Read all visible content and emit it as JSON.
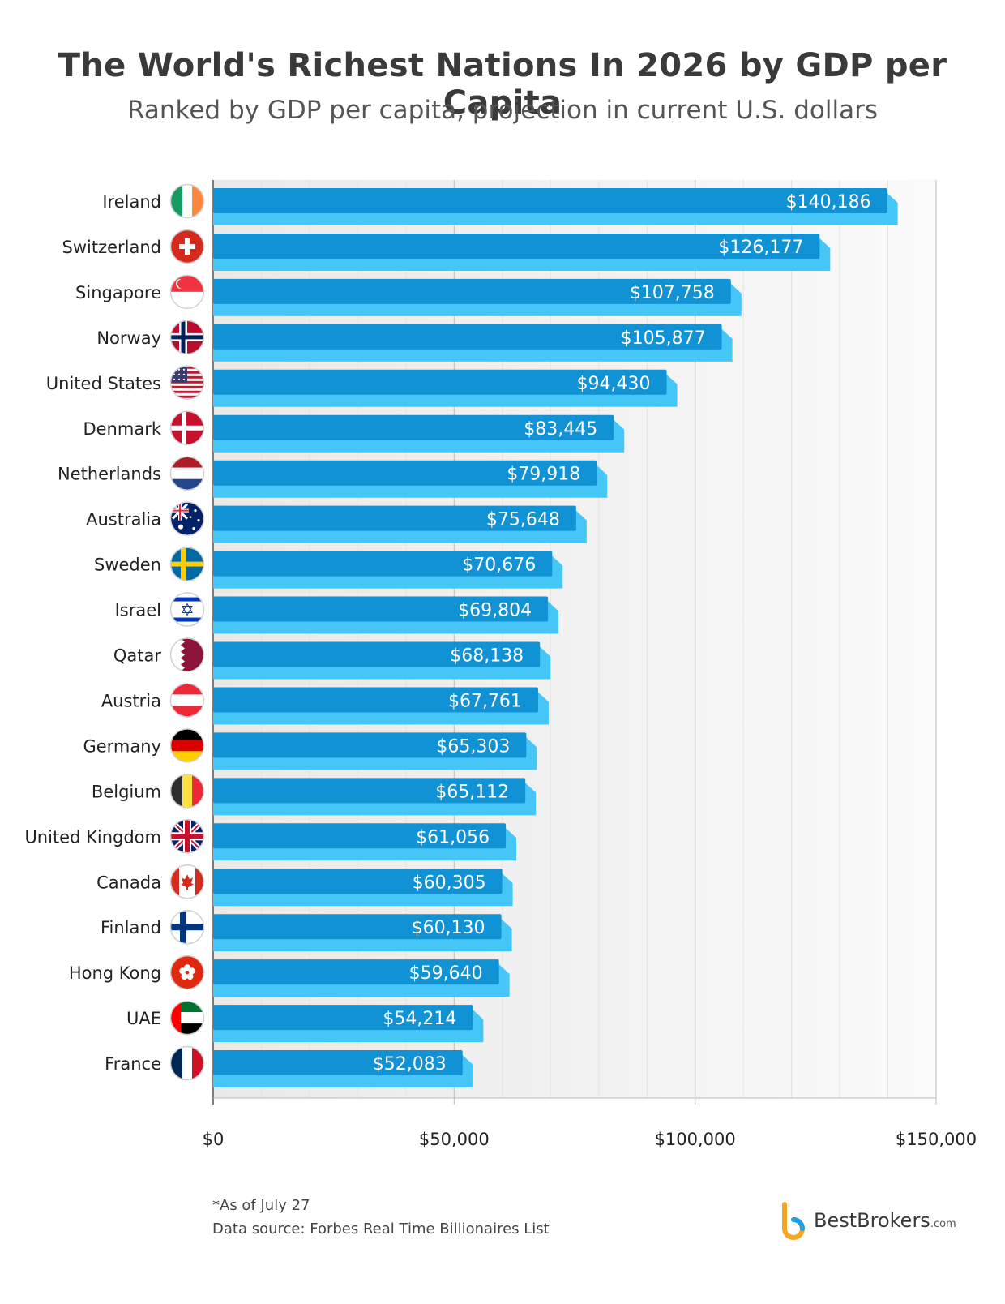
{
  "title": "The World's Richest Nations In 2026 by GDP per Capita",
  "subtitle": "Ranked by GDP per capita, projection in current U.S. dollars",
  "footnotes": {
    "asof": "*As of July 27",
    "source": "Data source: Forbes Real Time Billionaires List"
  },
  "brand": {
    "name": "BestBrokers",
    "suffix": ".com",
    "icon": "bestbrokers-logo-icon"
  },
  "colors": {
    "bar_front": "#1192d4",
    "bar_back": "#45c6f7",
    "plot_bg": "#f1f1f1",
    "grid": "#e2e2e2",
    "axis": "#555555"
  },
  "chart_data": {
    "type": "bar",
    "orientation": "horizontal",
    "categories": [
      "Ireland",
      "Switzerland",
      "Singapore",
      "Norway",
      "United States",
      "Denmark",
      "Netherlands",
      "Australia",
      "Sweden",
      "Israel",
      "Qatar",
      "Austria",
      "Germany",
      "Belgium",
      "United Kingdom",
      "Canada",
      "Finland",
      "Hong Kong",
      "UAE",
      "France"
    ],
    "values": [
      140186,
      126177,
      107758,
      105877,
      94430,
      83445,
      79918,
      75648,
      70676,
      69804,
      68138,
      67761,
      65303,
      65112,
      61056,
      60305,
      60130,
      59640,
      54214,
      52083
    ],
    "value_labels": [
      "$140,186",
      "$126,177",
      "$107,758",
      "$105,877",
      "$94,430",
      "$83,445",
      "$79,918",
      "$75,648",
      "$70,676",
      "$69,804",
      "$68,138",
      "$67,761",
      "$65,303",
      "$65,112",
      "$61,056",
      "$60,305",
      "$60,130",
      "$59,640",
      "$54,214",
      "$52,083"
    ],
    "flag_icons": [
      "ireland-flag-icon",
      "switzerland-flag-icon",
      "singapore-flag-icon",
      "norway-flag-icon",
      "united-states-flag-icon",
      "denmark-flag-icon",
      "netherlands-flag-icon",
      "australia-flag-icon",
      "sweden-flag-icon",
      "israel-flag-icon",
      "qatar-flag-icon",
      "austria-flag-icon",
      "germany-flag-icon",
      "belgium-flag-icon",
      "united-kingdom-flag-icon",
      "canada-flag-icon",
      "finland-flag-icon",
      "hong-kong-flag-icon",
      "uae-flag-icon",
      "france-flag-icon"
    ],
    "xlim": [
      0,
      150000
    ],
    "xticks": [
      0,
      50000,
      100000,
      150000
    ],
    "xtick_labels": [
      "$0",
      "$50,000",
      "$100,000",
      "$150,000"
    ],
    "minor_grid_step": 10000,
    "grid": true,
    "legend": "none"
  }
}
